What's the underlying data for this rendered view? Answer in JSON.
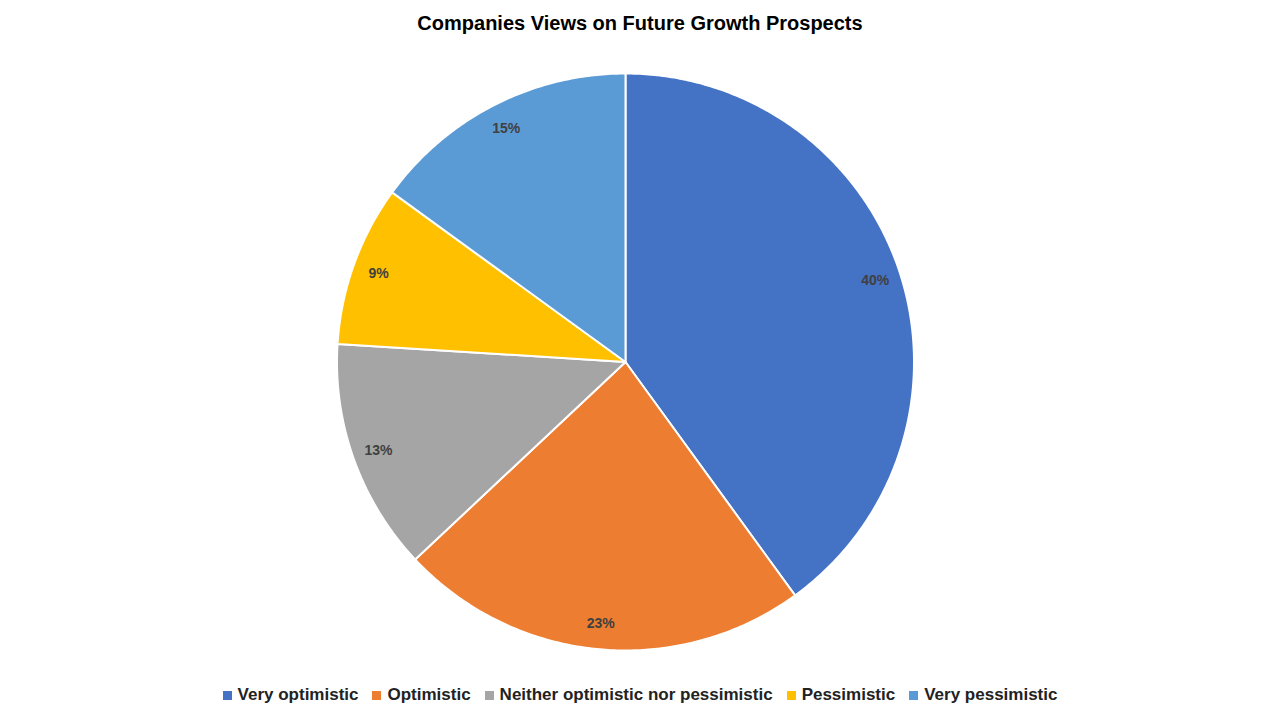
{
  "chart_data": {
    "type": "pie",
    "title": "Companies Views on Future Growth Prospects",
    "categories": [
      "Very optimistic",
      "Optimistic",
      "Neither optimistic nor pessimistic",
      "Pessimistic",
      "Very pessimistic"
    ],
    "values": [
      40,
      23,
      13,
      9,
      15
    ],
    "value_labels": [
      "40%",
      "23%",
      "13%",
      "9%",
      "15%"
    ],
    "colors": [
      "#4472c4",
      "#ed7d31",
      "#a5a5a5",
      "#ffc000",
      "#5b9bd5"
    ],
    "data_labels": true,
    "legend": "bottom",
    "tick_labels": false
  }
}
